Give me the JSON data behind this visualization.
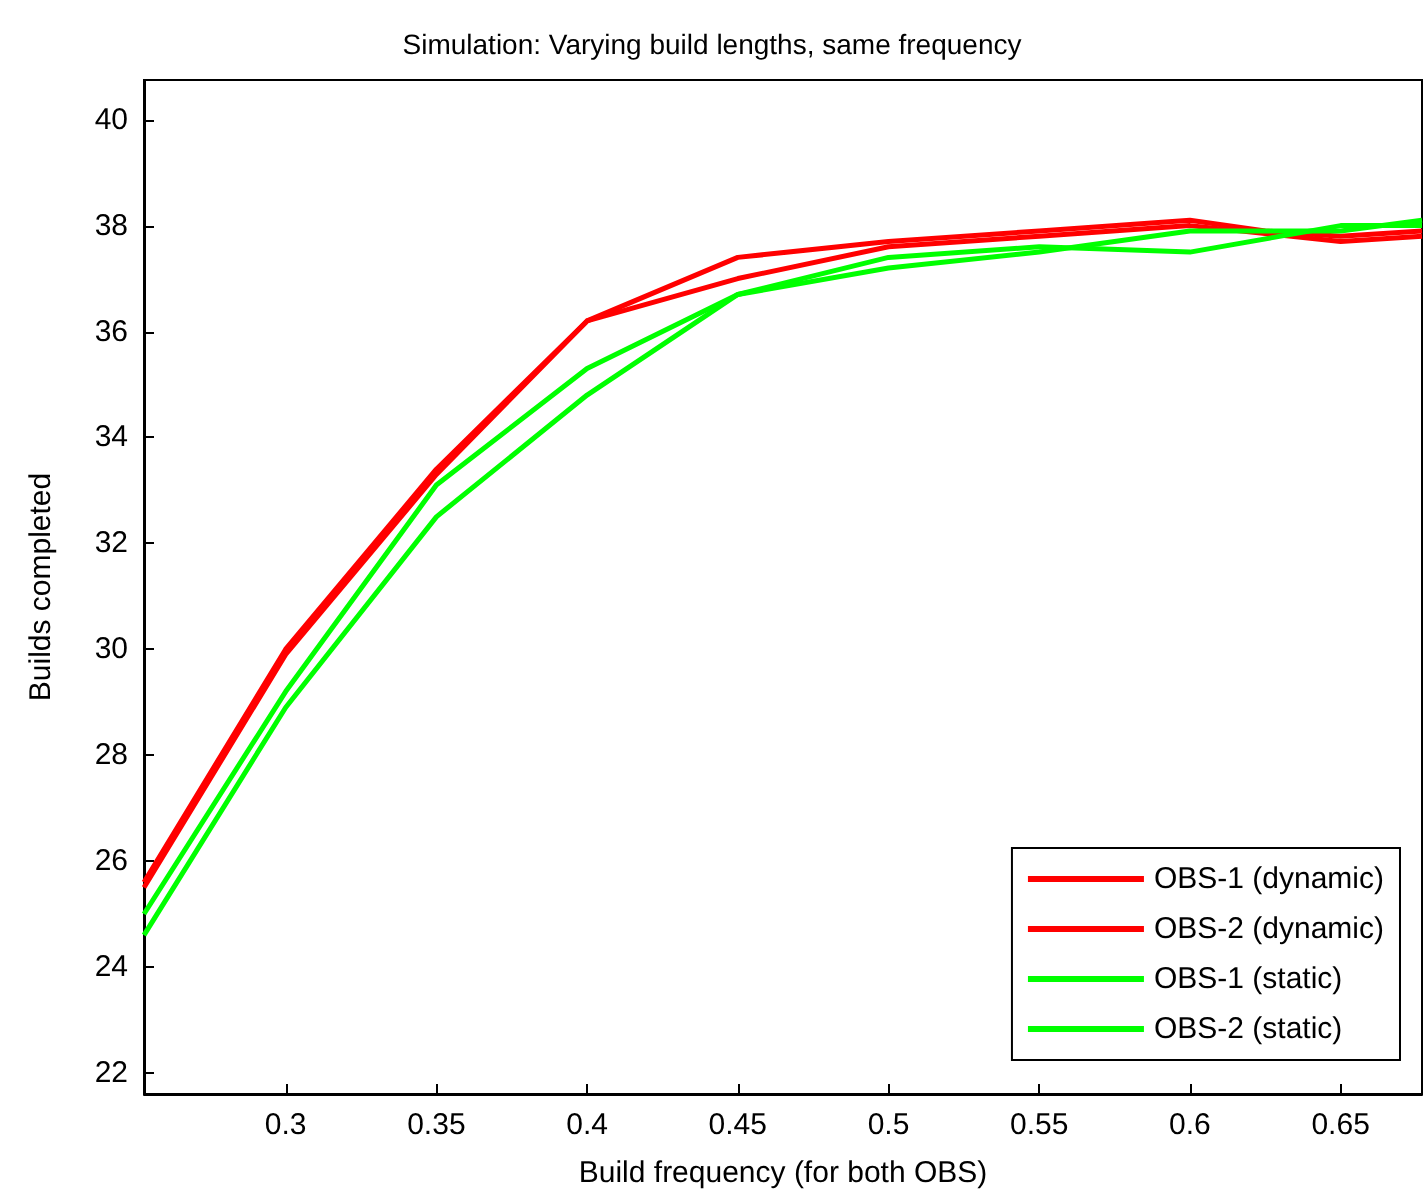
{
  "chart_data": {
    "type": "line",
    "title": "Simulation: Varying build lengths, same frequency",
    "xlabel": "Build frequency (for both OBS)",
    "ylabel": "Builds completed",
    "xlim": [
      0.253,
      0.677
    ],
    "xticks": [
      0.3,
      0.35,
      0.4,
      0.45,
      0.5,
      0.55,
      0.6,
      0.65
    ],
    "ylim": [
      21.6,
      40.75
    ],
    "yticks": [
      22,
      24,
      26,
      28,
      30,
      32,
      34,
      36,
      38,
      40
    ],
    "grid": false,
    "legend": "bottom right",
    "marker": "none",
    "line_style": "solid",
    "series": [
      {
        "name": "OBS-1 (dynamic)",
        "color": "#ff0000",
        "x": [
          0.253,
          0.3,
          0.35,
          0.375,
          0.4,
          0.45,
          0.5,
          0.55,
          0.6,
          0.625,
          0.65,
          0.677
        ],
        "values": [
          25.6,
          30.0,
          33.4,
          34.8,
          36.2,
          37.4,
          37.7,
          37.9,
          38.1,
          37.9,
          37.8,
          37.9
        ]
      },
      {
        "name": "OBS-2 (dynamic)",
        "color": "#ff0000",
        "x": [
          0.253,
          0.3,
          0.35,
          0.4,
          0.45,
          0.5,
          0.55,
          0.6,
          0.65,
          0.677
        ],
        "values": [
          25.5,
          29.9,
          33.3,
          36.2,
          37.0,
          37.6,
          37.8,
          38.0,
          37.7,
          37.8
        ]
      },
      {
        "name": "OBS-1 (static)",
        "color": "#00ff00",
        "x": [
          0.253,
          0.3,
          0.35,
          0.4,
          0.45,
          0.5,
          0.55,
          0.6,
          0.65,
          0.677
        ],
        "values": [
          25.0,
          29.2,
          33.1,
          35.3,
          36.7,
          37.4,
          37.6,
          37.5,
          38.0,
          38.0
        ]
      },
      {
        "name": "OBS-2 (static)",
        "color": "#00ff00",
        "x": [
          0.253,
          0.3,
          0.35,
          0.4,
          0.45,
          0.5,
          0.55,
          0.6,
          0.65,
          0.677
        ],
        "values": [
          24.6,
          28.9,
          32.5,
          34.8,
          36.7,
          37.2,
          37.5,
          37.9,
          37.9,
          38.1
        ]
      }
    ]
  }
}
